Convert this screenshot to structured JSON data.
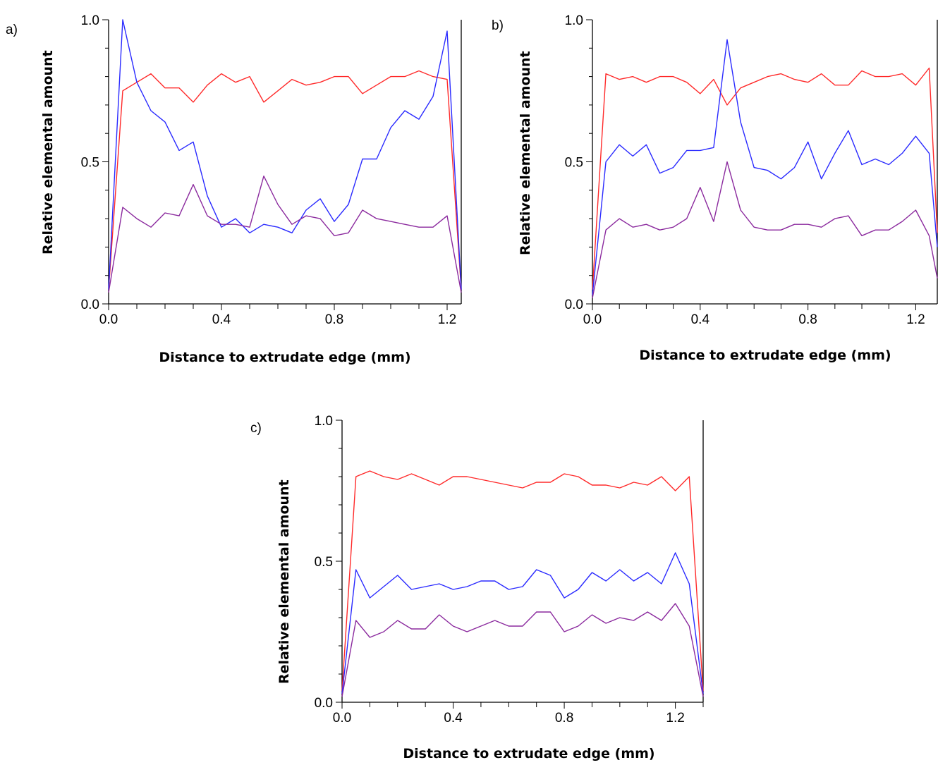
{
  "chart_data": [
    {
      "type": "line",
      "panel_label": "a)",
      "xlabel": "Distance to extrudate edge (mm)",
      "ylabel": "Relative elemental amount",
      "xlim": [
        0,
        1.25
      ],
      "ylim": [
        0,
        1.0
      ],
      "xticks": [
        "0.0",
        "0.4",
        "0.8",
        "1.2"
      ],
      "yticks": [
        "0.0",
        "0.5",
        "1.0"
      ],
      "grid": false,
      "series": [
        {
          "color": "#ff2a2a",
          "x": [
            0,
            0.05,
            0.1,
            0.15,
            0.2,
            0.25,
            0.3,
            0.35,
            0.4,
            0.45,
            0.5,
            0.55,
            0.6,
            0.65,
            0.7,
            0.75,
            0.8,
            0.85,
            0.9,
            0.95,
            1.0,
            1.05,
            1.1,
            1.15,
            1.2,
            1.25
          ],
          "y": [
            0.05,
            0.75,
            0.78,
            0.81,
            0.76,
            0.76,
            0.71,
            0.77,
            0.81,
            0.78,
            0.8,
            0.71,
            0.75,
            0.79,
            0.77,
            0.78,
            0.8,
            0.8,
            0.74,
            0.77,
            0.8,
            0.8,
            0.82,
            0.8,
            0.79,
            0.05
          ]
        },
        {
          "color": "#2a2aff",
          "x": [
            0,
            0.05,
            0.1,
            0.15,
            0.2,
            0.25,
            0.3,
            0.35,
            0.4,
            0.45,
            0.5,
            0.55,
            0.6,
            0.65,
            0.7,
            0.75,
            0.8,
            0.85,
            0.9,
            0.95,
            1.0,
            1.05,
            1.1,
            1.15,
            1.2,
            1.25
          ],
          "y": [
            0.05,
            1.0,
            0.78,
            0.68,
            0.64,
            0.54,
            0.57,
            0.38,
            0.27,
            0.3,
            0.25,
            0.28,
            0.27,
            0.25,
            0.33,
            0.37,
            0.29,
            0.35,
            0.51,
            0.51,
            0.62,
            0.68,
            0.65,
            0.73,
            0.96,
            0.05
          ]
        },
        {
          "color": "#8b2a9e",
          "x": [
            0,
            0.05,
            0.1,
            0.15,
            0.2,
            0.25,
            0.3,
            0.35,
            0.4,
            0.45,
            0.5,
            0.55,
            0.6,
            0.65,
            0.7,
            0.75,
            0.8,
            0.85,
            0.9,
            0.95,
            1.0,
            1.05,
            1.1,
            1.15,
            1.2,
            1.25
          ],
          "y": [
            0.04,
            0.34,
            0.3,
            0.27,
            0.32,
            0.31,
            0.42,
            0.31,
            0.28,
            0.28,
            0.27,
            0.45,
            0.35,
            0.28,
            0.31,
            0.3,
            0.24,
            0.25,
            0.33,
            0.3,
            0.29,
            0.28,
            0.27,
            0.27,
            0.31,
            0.04
          ]
        }
      ]
    },
    {
      "type": "line",
      "panel_label": "b)",
      "xlabel": "Distance to extrudate edge (mm)",
      "ylabel": "Relative elemental amount",
      "xlim": [
        0,
        1.28
      ],
      "ylim": [
        0,
        1.0
      ],
      "xticks": [
        "0.0",
        "0.4",
        "0.8",
        "1.2"
      ],
      "yticks": [
        "0.0",
        "0.5",
        "1.0"
      ],
      "grid": false,
      "series": [
        {
          "color": "#ff2a2a",
          "x": [
            0,
            0.05,
            0.1,
            0.15,
            0.2,
            0.25,
            0.3,
            0.35,
            0.4,
            0.45,
            0.5,
            0.55,
            0.6,
            0.65,
            0.7,
            0.75,
            0.8,
            0.85,
            0.9,
            0.95,
            1.0,
            1.05,
            1.1,
            1.15,
            1.2,
            1.25,
            1.28
          ],
          "y": [
            0.05,
            0.81,
            0.79,
            0.8,
            0.78,
            0.8,
            0.8,
            0.78,
            0.74,
            0.79,
            0.7,
            0.76,
            0.78,
            0.8,
            0.81,
            0.79,
            0.78,
            0.81,
            0.77,
            0.77,
            0.82,
            0.8,
            0.8,
            0.81,
            0.77,
            0.83,
            0.25
          ]
        },
        {
          "color": "#2a2aff",
          "x": [
            0,
            0.05,
            0.1,
            0.15,
            0.2,
            0.25,
            0.3,
            0.35,
            0.4,
            0.45,
            0.5,
            0.55,
            0.6,
            0.65,
            0.7,
            0.75,
            0.8,
            0.85,
            0.9,
            0.95,
            1.0,
            1.05,
            1.1,
            1.15,
            1.2,
            1.25,
            1.28
          ],
          "y": [
            0.03,
            0.5,
            0.56,
            0.52,
            0.56,
            0.46,
            0.48,
            0.54,
            0.54,
            0.55,
            0.93,
            0.64,
            0.48,
            0.47,
            0.44,
            0.48,
            0.57,
            0.44,
            0.53,
            0.61,
            0.49,
            0.51,
            0.49,
            0.53,
            0.59,
            0.53,
            0.2
          ]
        },
        {
          "color": "#8b2a9e",
          "x": [
            0,
            0.05,
            0.1,
            0.15,
            0.2,
            0.25,
            0.3,
            0.35,
            0.4,
            0.45,
            0.5,
            0.55,
            0.6,
            0.65,
            0.7,
            0.75,
            0.8,
            0.85,
            0.9,
            0.95,
            1.0,
            1.05,
            1.1,
            1.15,
            1.2,
            1.25,
            1.28
          ],
          "y": [
            0.02,
            0.26,
            0.3,
            0.27,
            0.28,
            0.26,
            0.27,
            0.3,
            0.41,
            0.29,
            0.5,
            0.33,
            0.27,
            0.26,
            0.26,
            0.28,
            0.28,
            0.27,
            0.3,
            0.31,
            0.24,
            0.26,
            0.26,
            0.29,
            0.33,
            0.24,
            0.09
          ]
        }
      ]
    },
    {
      "type": "line",
      "panel_label": "c)",
      "xlabel": "Distance to extrudate edge (mm)",
      "ylabel": "Relative elemental amount",
      "xlim": [
        0,
        1.3
      ],
      "ylim": [
        0,
        1.0
      ],
      "xticks": [
        "0.0",
        "0.4",
        "0.8",
        "1.2"
      ],
      "yticks": [
        "0.0",
        "0.5",
        "1.0"
      ],
      "grid": false,
      "series": [
        {
          "color": "#ff2a2a",
          "x": [
            0,
            0.05,
            0.1,
            0.15,
            0.2,
            0.25,
            0.3,
            0.35,
            0.4,
            0.45,
            0.5,
            0.55,
            0.6,
            0.65,
            0.7,
            0.75,
            0.8,
            0.85,
            0.9,
            0.95,
            1.0,
            1.05,
            1.1,
            1.15,
            1.2,
            1.25,
            1.3
          ],
          "y": [
            0.04,
            0.8,
            0.82,
            0.8,
            0.79,
            0.81,
            0.79,
            0.77,
            0.8,
            0.8,
            0.79,
            0.78,
            0.77,
            0.76,
            0.78,
            0.78,
            0.81,
            0.8,
            0.77,
            0.77,
            0.76,
            0.78,
            0.77,
            0.8,
            0.75,
            0.8,
            0.04
          ]
        },
        {
          "color": "#2a2aff",
          "x": [
            0,
            0.05,
            0.1,
            0.15,
            0.2,
            0.25,
            0.3,
            0.35,
            0.4,
            0.45,
            0.5,
            0.55,
            0.6,
            0.65,
            0.7,
            0.75,
            0.8,
            0.85,
            0.9,
            0.95,
            1.0,
            1.05,
            1.1,
            1.15,
            1.2,
            1.25,
            1.3
          ],
          "y": [
            0.03,
            0.47,
            0.37,
            0.41,
            0.45,
            0.4,
            0.41,
            0.42,
            0.4,
            0.41,
            0.43,
            0.43,
            0.4,
            0.41,
            0.47,
            0.45,
            0.37,
            0.4,
            0.46,
            0.43,
            0.47,
            0.43,
            0.46,
            0.42,
            0.53,
            0.42,
            0.03
          ]
        },
        {
          "color": "#8b2a9e",
          "x": [
            0,
            0.05,
            0.1,
            0.15,
            0.2,
            0.25,
            0.3,
            0.35,
            0.4,
            0.45,
            0.5,
            0.55,
            0.6,
            0.65,
            0.7,
            0.75,
            0.8,
            0.85,
            0.9,
            0.95,
            1.0,
            1.05,
            1.1,
            1.15,
            1.2,
            1.25,
            1.3
          ],
          "y": [
            0.02,
            0.29,
            0.23,
            0.25,
            0.29,
            0.26,
            0.26,
            0.31,
            0.27,
            0.25,
            0.27,
            0.29,
            0.27,
            0.27,
            0.32,
            0.32,
            0.25,
            0.27,
            0.31,
            0.28,
            0.3,
            0.29,
            0.32,
            0.29,
            0.35,
            0.27,
            0.02
          ]
        }
      ]
    }
  ]
}
